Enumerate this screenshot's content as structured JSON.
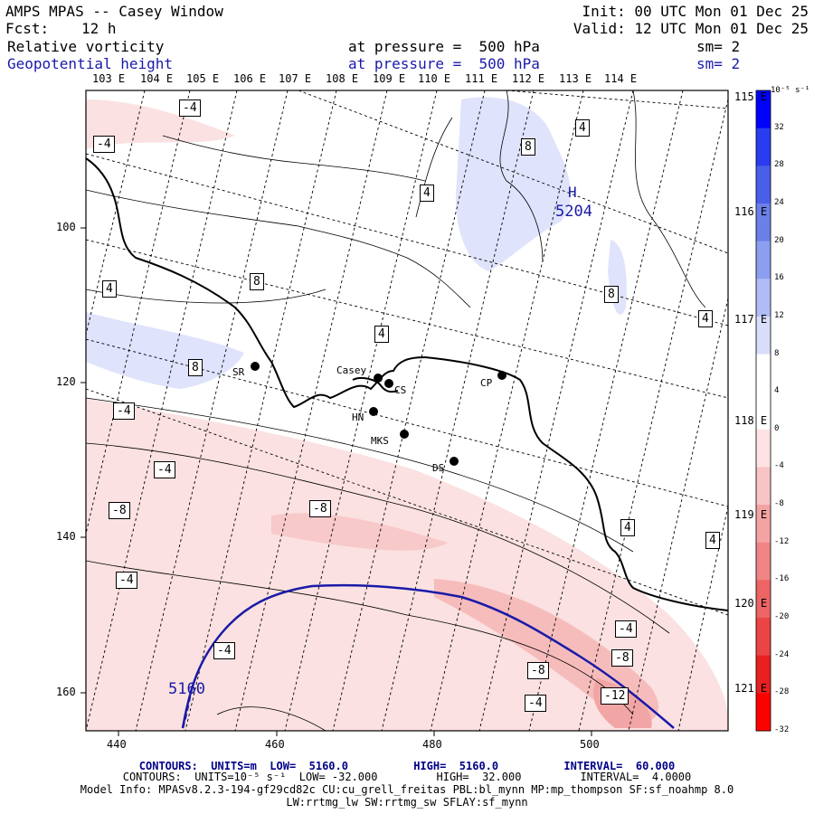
{
  "header": {
    "title": "AMPS MPAS -- Casey Window",
    "fcst_label": "Fcst:",
    "fcst_value": "12 h",
    "init": "Init: 00 UTC Mon 01 Dec 25",
    "valid": "Valid: 12 UTC Mon 01 Dec 25",
    "field1": {
      "name": "Relative vorticity",
      "level": "at pressure =  500 hPa",
      "smooth": "sm= 2"
    },
    "field2": {
      "name": "Geopotential height",
      "level": "at pressure =  500 hPa",
      "smooth": "sm= 2"
    }
  },
  "lon_top": [
    "103 E",
    "104 E",
    "105 E",
    "106 E",
    "107 E",
    "108 E",
    "109 E",
    "110 E",
    "111 E",
    "112 E",
    "113 E",
    "114 E"
  ],
  "lon_right": [
    "115 E",
    "116 E",
    "117 E",
    "118 E",
    "119 E",
    "120 E",
    "121 E"
  ],
  "x_axis": [
    "440",
    "460",
    "480",
    "500"
  ],
  "y_axis": [
    "100",
    "120",
    "140",
    "160"
  ],
  "stations": [
    {
      "name": "Casey"
    },
    {
      "name": "CS"
    },
    {
      "name": "CP"
    },
    {
      "name": "SR"
    },
    {
      "name": "HN"
    },
    {
      "name": "MKS"
    },
    {
      "name": "DS"
    }
  ],
  "vort_labels": [
    "-4",
    "-4",
    "4",
    "8",
    "4",
    "8",
    "8",
    "4",
    "4",
    "8",
    "-4",
    "-4",
    "-8",
    "-8",
    "-4",
    "-4",
    "-4",
    "-8",
    "-8",
    "-4",
    "-12",
    "4",
    "4",
    "4"
  ],
  "height_labels": [
    {
      "text": "H"
    },
    {
      "text": "5204"
    },
    {
      "text": "5160"
    }
  ],
  "colorbar": {
    "unit": "10⁻⁵ s⁻¹",
    "ticks": [
      "32",
      "28",
      "24",
      "20",
      "16",
      "12",
      "8",
      "4",
      "0",
      "-4",
      "-8",
      "-12",
      "-16",
      "-20",
      "-24",
      "-28",
      "-32"
    ],
    "colors": [
      "#0000ff",
      "#2a3cf0",
      "#4a5fe8",
      "#6b7fe8",
      "#8c9ef0",
      "#b0bcf5",
      "#d8ddfa",
      "#ffffff",
      "#ffffff",
      "#fde3e3",
      "#f8c4c4",
      "#f4a3a3",
      "#ef8585",
      "#ec6464",
      "#ea4444",
      "#e82020",
      "#ff0000"
    ]
  },
  "footer": {
    "line1": "CONTOURS:  UNITS=m  LOW=  5160.0          HIGH=  5160.0          INTERVAL=  60.000",
    "line2": "CONTOURS:  UNITS=10⁻⁵ s⁻¹  LOW= -32.000         HIGH=  32.000         INTERVAL=  4.0000",
    "line3": "Model Info: MPASv8.2.3-194-gf29cd82c CU:cu_grell_freitas PBL:bl_mynn MP:mp_thompson SF:sf_noahmp 8.0",
    "line4": "LW:rrtmg_lw SW:rrtmg_sw SFLAY:sf_mynn"
  },
  "colors": {
    "height_contour": "#1a1aa8",
    "coast": "#000000",
    "pos_fill": "#dfe3fb",
    "neg_fill": "#fbe1e1"
  }
}
